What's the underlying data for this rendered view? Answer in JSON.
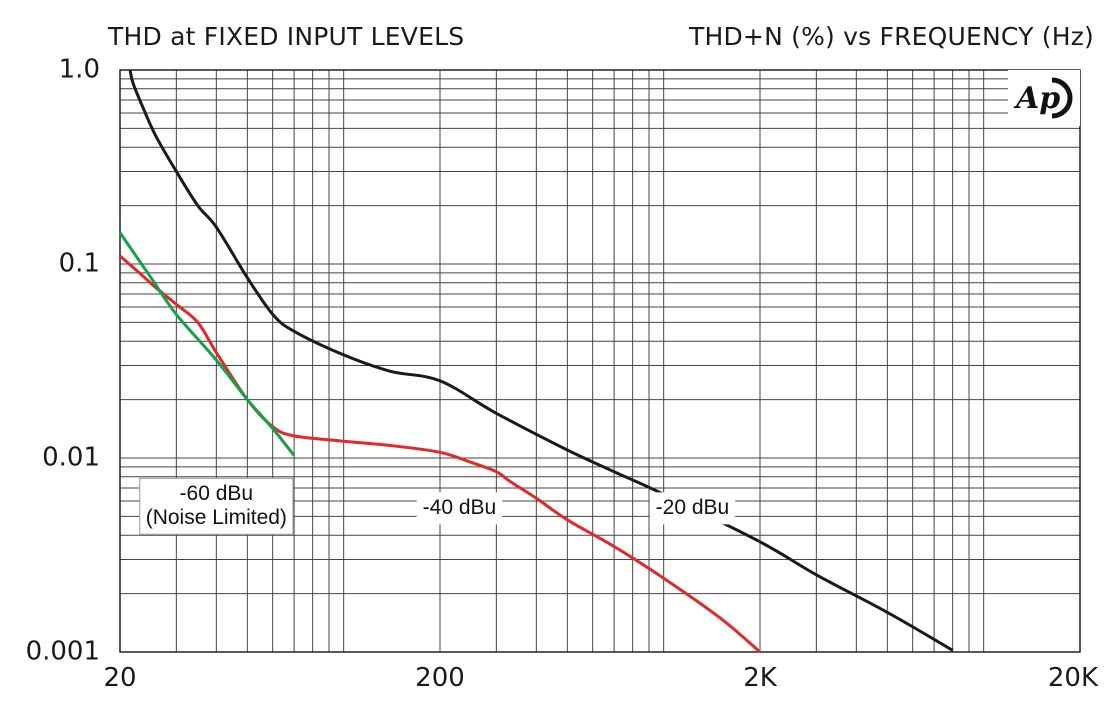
{
  "header": {
    "left_title": "THD at FIXED INPUT LEVELS",
    "right_title": "THD+N (%) vs FREQUENCY (Hz)",
    "logo_text": "Ap"
  },
  "chart_data": {
    "type": "line",
    "title": "THD at FIXED INPUT LEVELS",
    "subtitle": "THD+N (%) vs FREQUENCY (Hz)",
    "xscale": "log",
    "yscale": "log",
    "xlim": [
      20,
      20000
    ],
    "ylim": [
      0.001,
      1.0
    ],
    "grid": true,
    "x_ticks": [
      {
        "value": 20,
        "label": "20"
      },
      {
        "value": 200,
        "label": "200"
      },
      {
        "value": 2000,
        "label": "2K"
      },
      {
        "value": 20000,
        "label": "20K"
      }
    ],
    "y_ticks": [
      {
        "value": 1.0,
        "label": "1.0"
      },
      {
        "value": 0.1,
        "label": "0.1"
      },
      {
        "value": 0.01,
        "label": "0.01"
      },
      {
        "value": 0.001,
        "label": "0.001"
      }
    ],
    "series": [
      {
        "name": "-20 dBu",
        "color": "#1a1a1a",
        "points": [
          [
            21.5,
            1.0
          ],
          [
            22,
            0.85
          ],
          [
            24,
            0.6
          ],
          [
            26,
            0.45
          ],
          [
            30,
            0.3
          ],
          [
            35,
            0.2
          ],
          [
            40,
            0.155
          ],
          [
            50,
            0.085
          ],
          [
            60,
            0.055
          ],
          [
            70,
            0.045
          ],
          [
            100,
            0.034
          ],
          [
            140,
            0.028
          ],
          [
            200,
            0.025
          ],
          [
            300,
            0.017
          ],
          [
            500,
            0.011
          ],
          [
            700,
            0.0085
          ],
          [
            1000,
            0.0065
          ],
          [
            2000,
            0.0037
          ],
          [
            3000,
            0.0025
          ],
          [
            5000,
            0.0016
          ],
          [
            8000,
            0.00102
          ]
        ]
      },
      {
        "name": "-40 dBu",
        "color": "#e0282d",
        "points": [
          [
            20,
            0.11
          ],
          [
            23,
            0.09
          ],
          [
            26,
            0.075
          ],
          [
            30,
            0.062
          ],
          [
            35,
            0.05
          ],
          [
            40,
            0.035
          ],
          [
            50,
            0.02
          ],
          [
            60,
            0.0145
          ],
          [
            70,
            0.013
          ],
          [
            100,
            0.0122
          ],
          [
            140,
            0.0116
          ],
          [
            200,
            0.0107
          ],
          [
            250,
            0.0095
          ],
          [
            300,
            0.0085
          ],
          [
            330,
            0.0076
          ],
          [
            400,
            0.0062
          ],
          [
            500,
            0.0048
          ],
          [
            700,
            0.0035
          ],
          [
            1000,
            0.0024
          ],
          [
            1500,
            0.0015
          ],
          [
            2000,
            0.001
          ]
        ]
      },
      {
        "name": "-60 dBu (Noise Limited)",
        "color": "#16a04a",
        "points": [
          [
            20,
            0.145
          ],
          [
            25,
            0.085
          ],
          [
            30,
            0.055
          ],
          [
            40,
            0.032
          ],
          [
            50,
            0.02
          ],
          [
            60,
            0.0142
          ],
          [
            70,
            0.0103
          ]
        ]
      }
    ],
    "annotations": [
      {
        "id": "label-60",
        "lines": [
          "-60 dBu",
          "(Noise Limited)"
        ],
        "x": 40,
        "y": 0.0065
      },
      {
        "id": "label-40",
        "lines": [
          "-40 dBu"
        ],
        "x": 230,
        "y": 0.0055
      },
      {
        "id": "label-20",
        "lines": [
          "-20 dBu"
        ],
        "x": 1230,
        "y": 0.0055
      }
    ]
  }
}
